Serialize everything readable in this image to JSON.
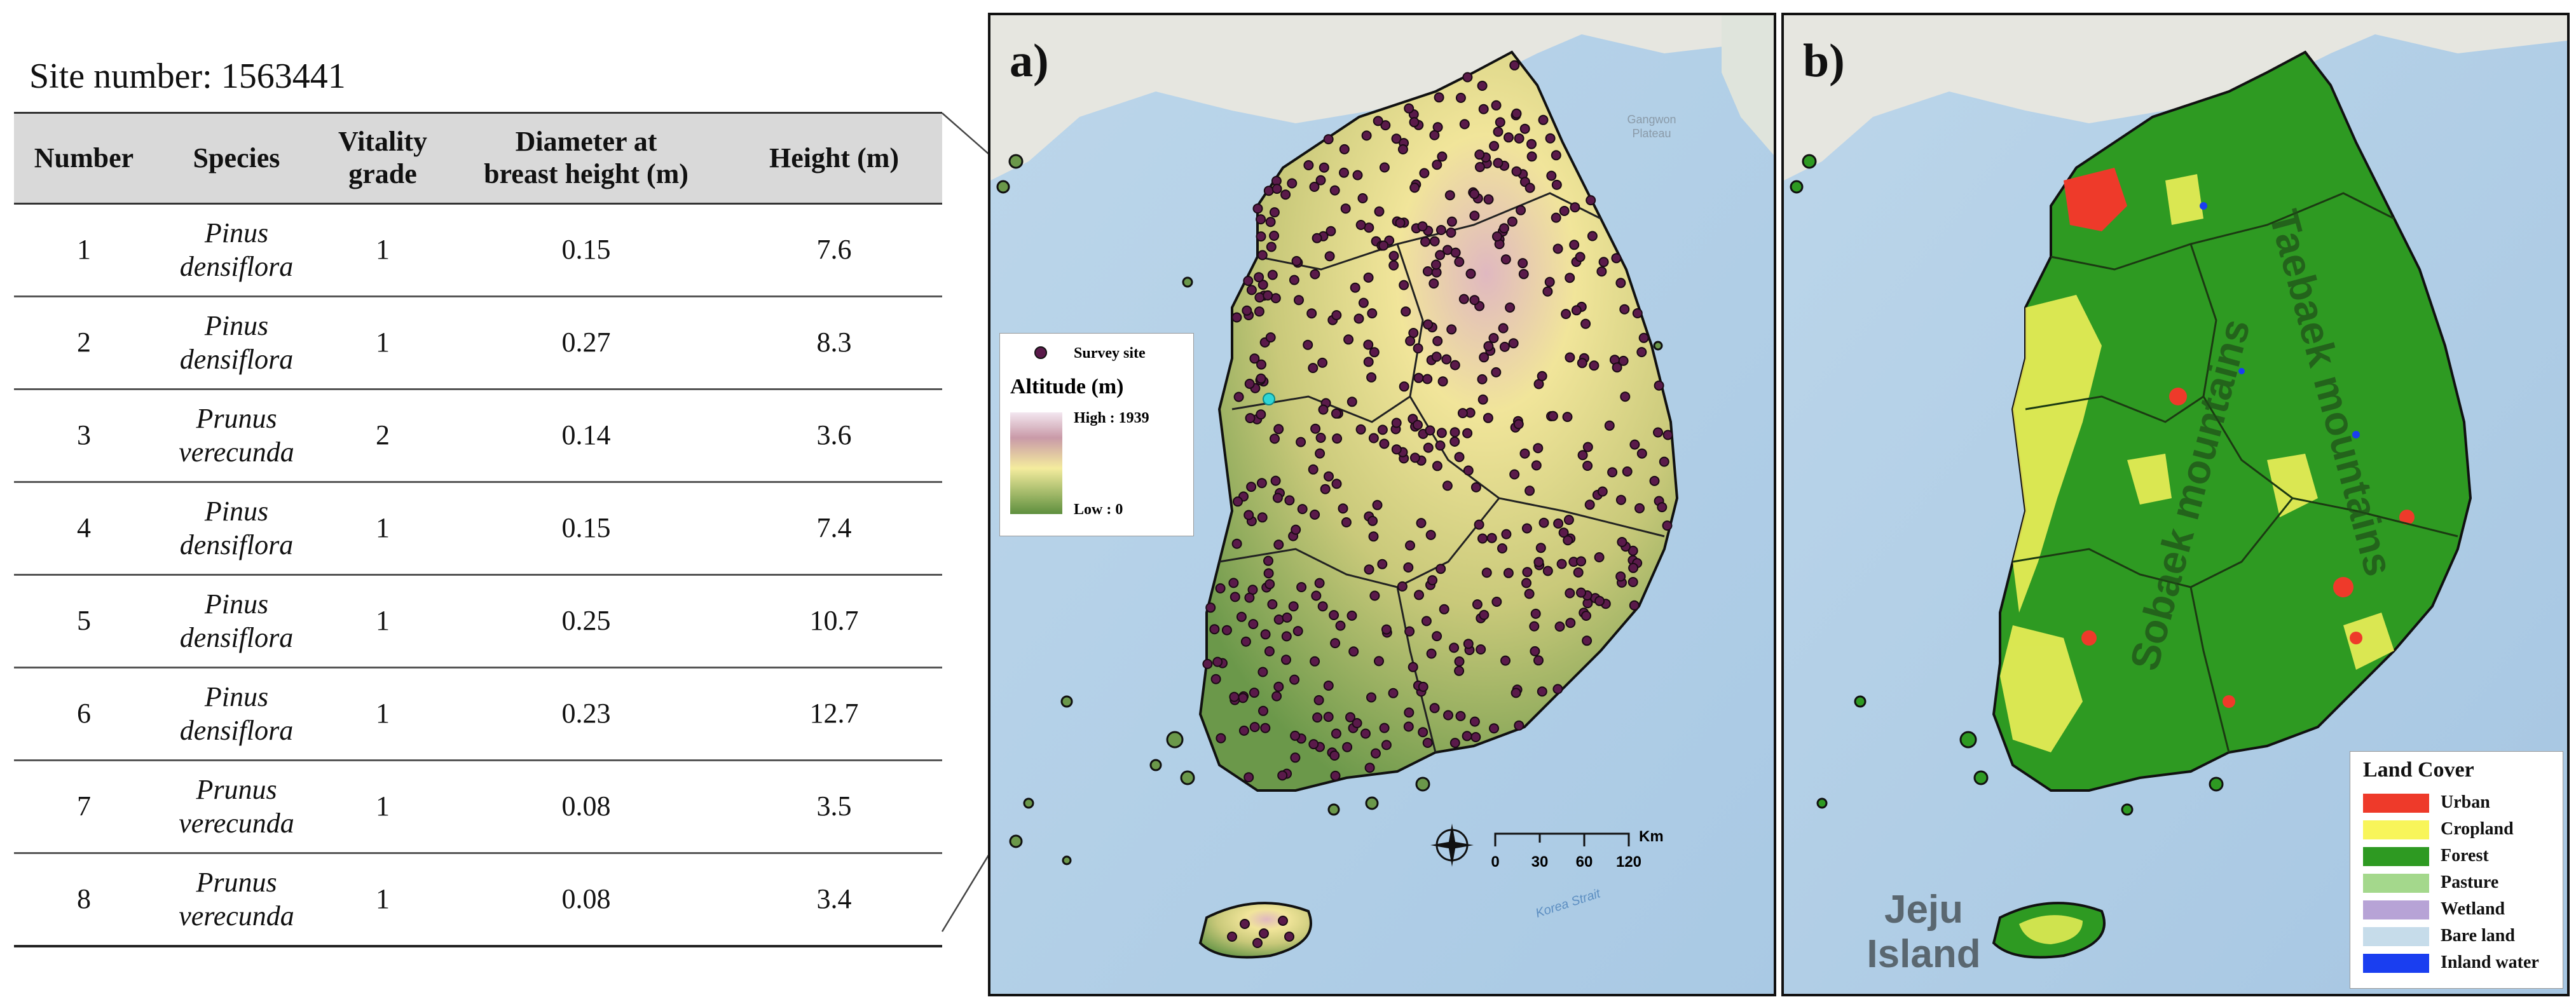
{
  "table": {
    "site_label": "Site number: 1563441",
    "headers": {
      "number": "Number",
      "species": "Species",
      "vitality": [
        "Vitality",
        "grade"
      ],
      "dbh": [
        "Diameter at",
        "breast height (m)"
      ],
      "height": "Height (m)"
    },
    "rows": [
      {
        "number": "1",
        "species": [
          "Pinus",
          "densiflora"
        ],
        "vitality": "1",
        "dbh": "0.15",
        "height": "7.6"
      },
      {
        "number": "2",
        "species": [
          "Pinus",
          "densiflora"
        ],
        "vitality": "1",
        "dbh": "0.27",
        "height": "8.3"
      },
      {
        "number": "3",
        "species": [
          "Prunus",
          "verecunda"
        ],
        "vitality": "2",
        "dbh": "0.14",
        "height": "3.6"
      },
      {
        "number": "4",
        "species": [
          "Pinus",
          "densiflora"
        ],
        "vitality": "1",
        "dbh": "0.15",
        "height": "7.4"
      },
      {
        "number": "5",
        "species": [
          "Pinus",
          "densiflora"
        ],
        "vitality": "1",
        "dbh": "0.25",
        "height": "10.7"
      },
      {
        "number": "6",
        "species": [
          "Pinus",
          "densiflora"
        ],
        "vitality": "1",
        "dbh": "0.23",
        "height": "12.7"
      },
      {
        "number": "7",
        "species": [
          "Prunus",
          "verecunda"
        ],
        "vitality": "1",
        "dbh": "0.08",
        "height": "3.5"
      },
      {
        "number": "8",
        "species": [
          "Prunus",
          "verecunda"
        ],
        "vitality": "1",
        "dbh": "0.08",
        "height": "3.4"
      }
    ]
  },
  "map_a": {
    "label": "a)",
    "legend": {
      "survey_site": "Survey site",
      "altitude_title": "Altitude (m)",
      "high": "High : 1939",
      "low": "Low : 0"
    },
    "scale": {
      "ticks": [
        "0",
        "30",
        "60",
        "120"
      ],
      "unit": "Km"
    },
    "base_labels": {
      "gangwon": [
        "Gangwon",
        "Plateau"
      ],
      "strait": "Korea Strait"
    },
    "colors": {
      "survey_site": "#5a1a4a",
      "highlight_site": "#2fd6d6",
      "dem_low": "#5e8f3e",
      "dem_mid": "#f1e59a",
      "dem_high": "#e8c6d4"
    }
  },
  "map_b": {
    "label": "b)",
    "labels": {
      "taebaek": "Taebaek mountains",
      "sobaek": "Sobaek mountains",
      "jeju": [
        "Jeju",
        "Island"
      ]
    },
    "legend": {
      "title": "Land Cover",
      "items": [
        {
          "label": "Urban",
          "color": "#ee3a2a"
        },
        {
          "label": "Cropland",
          "color": "#f8f55a"
        },
        {
          "label": "Forest",
          "color": "#2e9a22"
        },
        {
          "label": "Pasture",
          "color": "#a4d88c"
        },
        {
          "label": "Wetland",
          "color": "#b7a3d6"
        },
        {
          "label": "Bare land",
          "color": "#c6dcea"
        },
        {
          "label": "Inland water",
          "color": "#1a3ef0"
        }
      ]
    }
  }
}
